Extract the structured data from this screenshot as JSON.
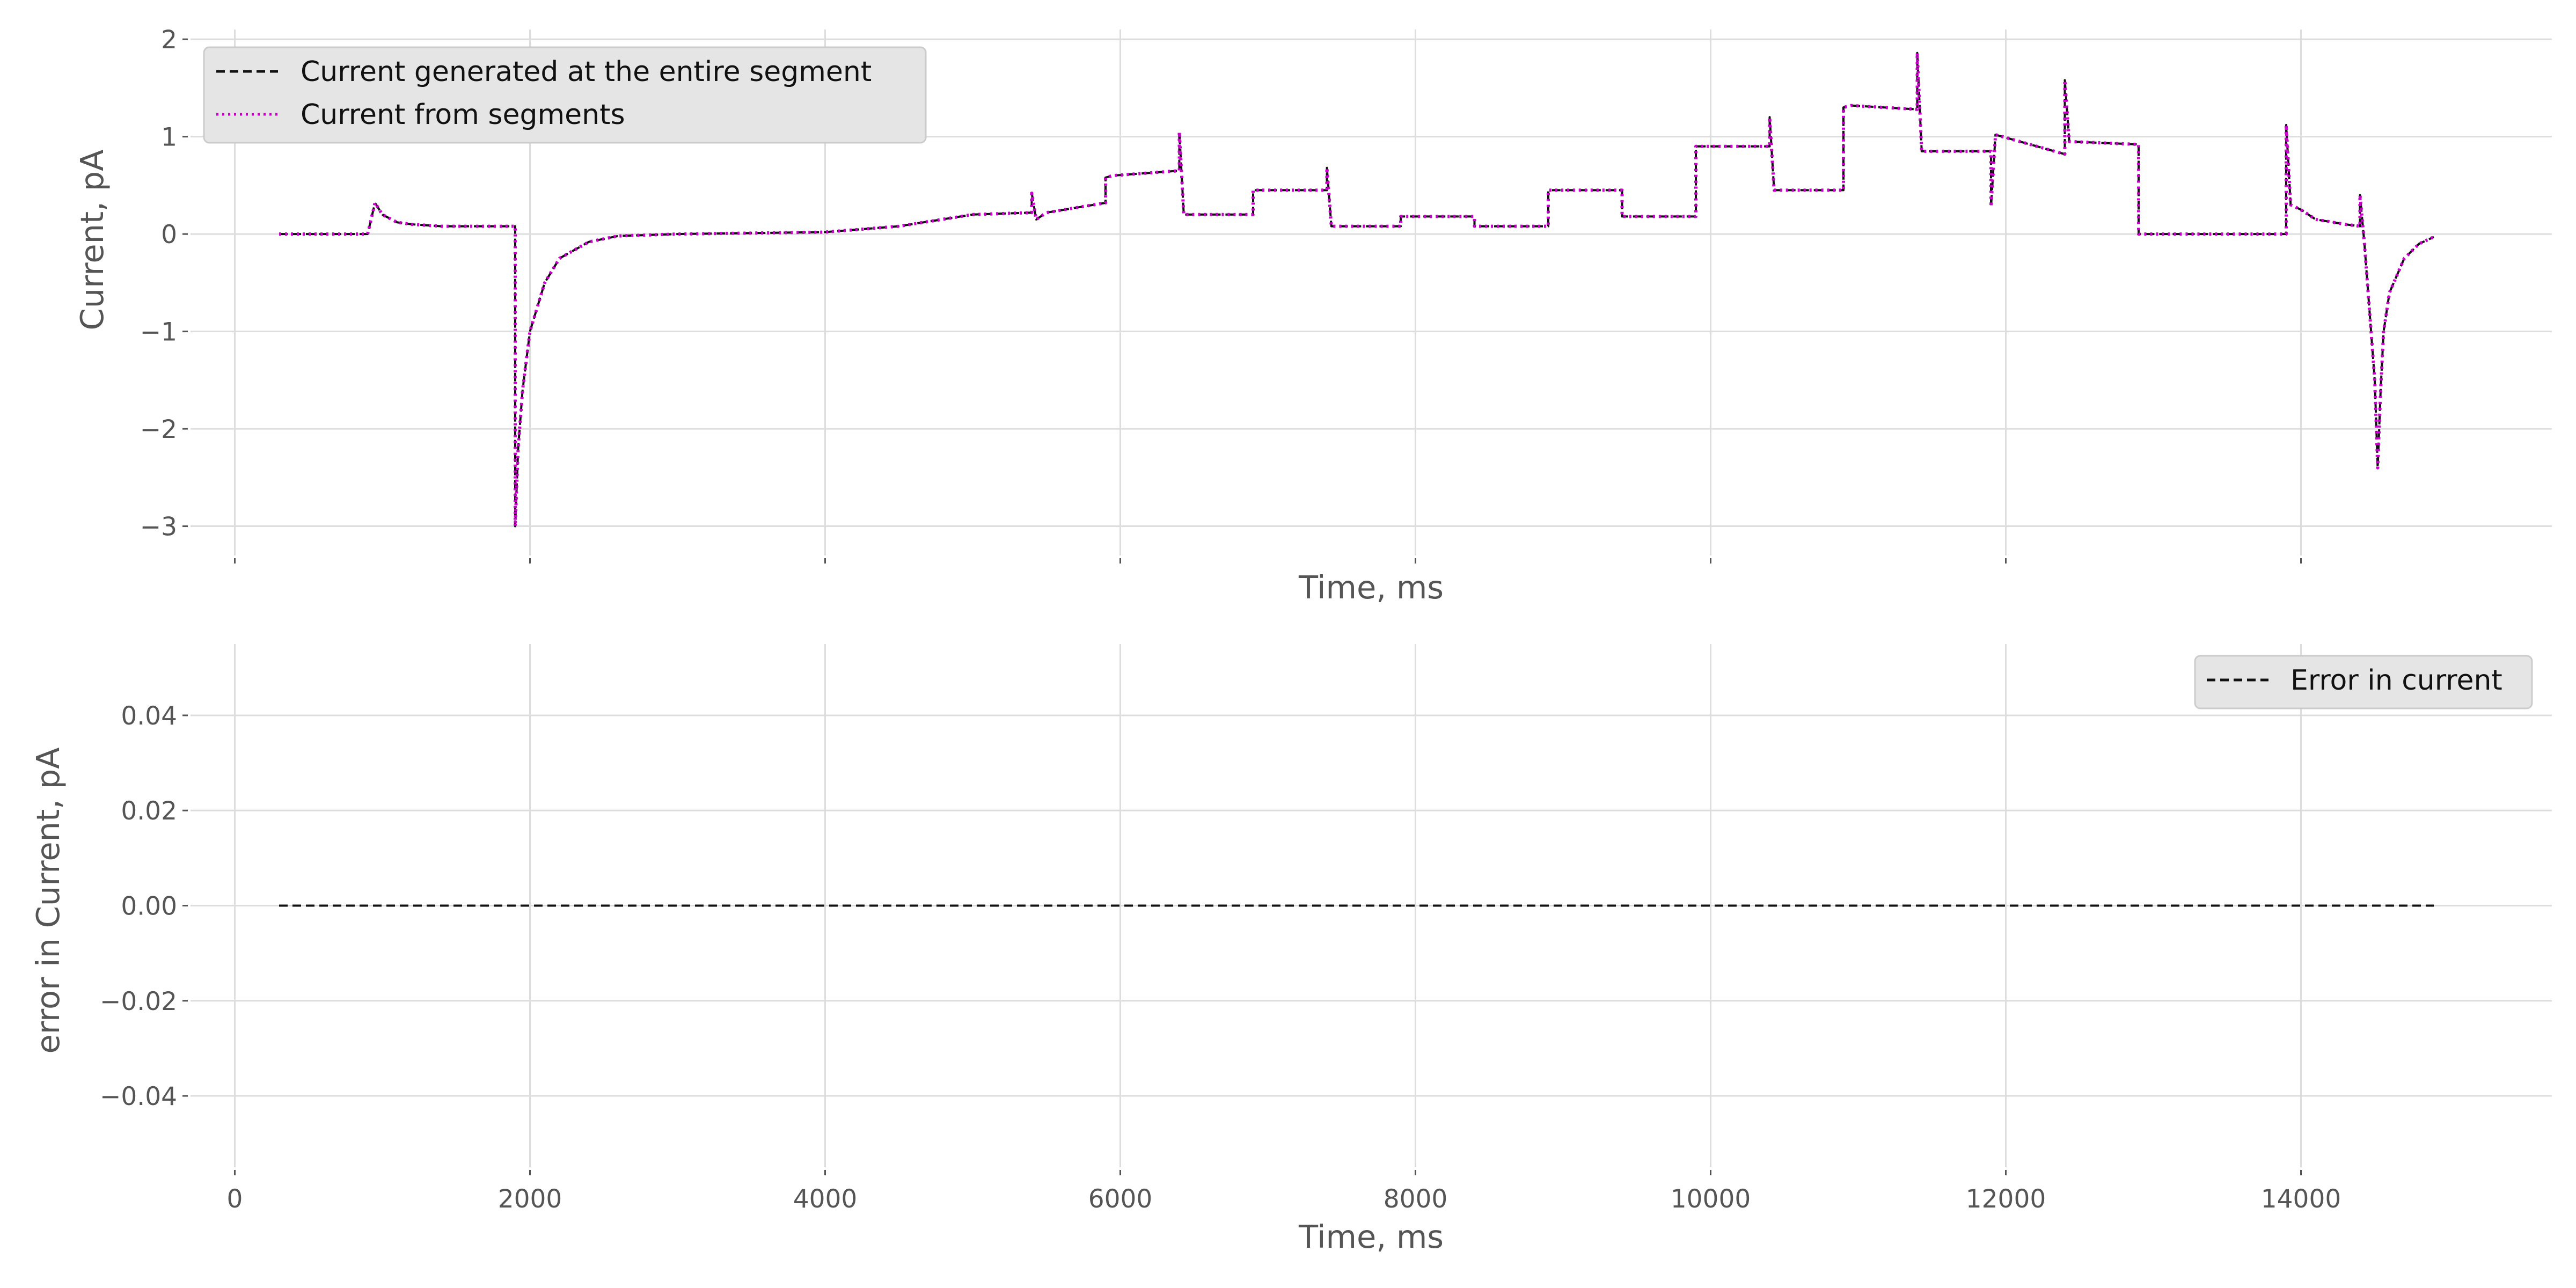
{
  "colors": {
    "plot_background": "#ffffff",
    "grid": "#dddddd",
    "tick_text": "#555555",
    "legend_background": "#e5e5e5",
    "legend_border": "#cccccc",
    "entire_segment_line": "#111111",
    "segments_line": "#cc00cc",
    "error_line": "#111111"
  },
  "chart_data": [
    {
      "type": "line",
      "xlabel": "Time, ms",
      "ylabel": "Current, pA",
      "xlim": [
        -300,
        15700
      ],
      "ylim": [
        -3.3,
        2.1
      ],
      "x_ticks": [
        0,
        2000,
        4000,
        6000,
        8000,
        10000,
        12000,
        14000
      ],
      "show_x_tick_labels": false,
      "y_ticks": [
        -3,
        -2,
        -1,
        0,
        1,
        2
      ],
      "y_tick_labels": [
        "−3",
        "−2",
        "−1",
        "0",
        "1",
        "2"
      ],
      "grid": true,
      "legend_position": "top-left",
      "series": [
        {
          "name": "Current generated at the entire segment",
          "style": "dashed",
          "color": "#111111",
          "x": [
            300,
            900,
            950,
            1000,
            1100,
            1200,
            1400,
            1900,
            1900,
            1920,
            1950,
            2000,
            2100,
            2200,
            2400,
            2600,
            3000,
            4000,
            4500,
            5000,
            5400,
            5400,
            5430,
            5500,
            5900,
            5900,
            5950,
            6400,
            6400,
            6430,
            6900,
            6900,
            6950,
            7400,
            7400,
            7430,
            7900,
            7900,
            8400,
            8400,
            8900,
            8900,
            9400,
            9400,
            9900,
            9900,
            9950,
            10400,
            10400,
            10430,
            10900,
            10900,
            10950,
            11400,
            11400,
            11430,
            11900,
            11900,
            11930,
            12400,
            12400,
            12430,
            12900,
            12900,
            13900,
            13900,
            13930,
            14000,
            14100,
            14300,
            14400,
            14400,
            14430,
            14500,
            14520,
            14540,
            14560,
            14600,
            14700,
            14800,
            14900
          ],
          "values": [
            0.0,
            0.0,
            0.32,
            0.2,
            0.12,
            0.1,
            0.08,
            0.08,
            -3.0,
            -2.2,
            -1.6,
            -1.0,
            -0.5,
            -0.25,
            -0.08,
            -0.02,
            0.0,
            0.02,
            0.08,
            0.2,
            0.22,
            0.42,
            0.15,
            0.22,
            0.32,
            0.58,
            0.6,
            0.65,
            1.05,
            0.2,
            0.2,
            0.45,
            0.45,
            0.45,
            0.68,
            0.08,
            0.08,
            0.18,
            0.18,
            0.08,
            0.08,
            0.45,
            0.45,
            0.18,
            0.18,
            0.9,
            0.9,
            0.9,
            1.2,
            0.45,
            0.45,
            1.3,
            1.32,
            1.28,
            1.86,
            0.85,
            0.85,
            0.28,
            1.02,
            0.82,
            1.58,
            0.95,
            0.92,
            0.0,
            0.0,
            1.12,
            0.3,
            0.25,
            0.15,
            0.1,
            0.08,
            0.4,
            -0.1,
            -1.5,
            -2.4,
            -1.6,
            -1.0,
            -0.6,
            -0.25,
            -0.1,
            -0.03
          ]
        },
        {
          "name": "Current from segments",
          "style": "dotted",
          "color": "#cc00cc",
          "x": [
            300,
            900,
            950,
            1000,
            1100,
            1200,
            1400,
            1900,
            1900,
            1920,
            1950,
            2000,
            2100,
            2200,
            2400,
            2600,
            3000,
            4000,
            4500,
            5000,
            5400,
            5400,
            5430,
            5500,
            5900,
            5900,
            5950,
            6400,
            6400,
            6430,
            6900,
            6900,
            6950,
            7400,
            7400,
            7430,
            7900,
            7900,
            8400,
            8400,
            8900,
            8900,
            9400,
            9400,
            9900,
            9900,
            9950,
            10400,
            10400,
            10430,
            10900,
            10900,
            10950,
            11400,
            11400,
            11430,
            11900,
            11900,
            11930,
            12400,
            12400,
            12430,
            12900,
            12900,
            13900,
            13900,
            13930,
            14000,
            14100,
            14300,
            14400,
            14400,
            14430,
            14500,
            14520,
            14540,
            14560,
            14600,
            14700,
            14800,
            14900
          ],
          "values": [
            0.0,
            0.0,
            0.32,
            0.2,
            0.12,
            0.1,
            0.08,
            0.08,
            -3.0,
            -2.2,
            -1.6,
            -1.0,
            -0.5,
            -0.25,
            -0.08,
            -0.02,
            0.0,
            0.02,
            0.08,
            0.2,
            0.22,
            0.42,
            0.15,
            0.22,
            0.32,
            0.58,
            0.6,
            0.65,
            1.05,
            0.2,
            0.2,
            0.45,
            0.45,
            0.45,
            0.68,
            0.08,
            0.08,
            0.18,
            0.18,
            0.08,
            0.08,
            0.45,
            0.45,
            0.18,
            0.18,
            0.9,
            0.9,
            0.9,
            1.2,
            0.45,
            0.45,
            1.3,
            1.32,
            1.28,
            1.86,
            0.85,
            0.85,
            0.28,
            1.02,
            0.82,
            1.58,
            0.95,
            0.92,
            0.0,
            0.0,
            1.12,
            0.3,
            0.25,
            0.15,
            0.1,
            0.08,
            0.4,
            -0.1,
            -1.5,
            -2.4,
            -1.6,
            -1.0,
            -0.6,
            -0.25,
            -0.1,
            -0.03
          ]
        }
      ]
    },
    {
      "type": "line",
      "xlabel": "Time, ms",
      "ylabel": "error in Current, pA",
      "xlim": [
        -300,
        15700
      ],
      "ylim": [
        -0.055,
        0.055
      ],
      "x_ticks": [
        0,
        2000,
        4000,
        6000,
        8000,
        10000,
        12000,
        14000
      ],
      "x_tick_labels": [
        "0",
        "2000",
        "4000",
        "6000",
        "8000",
        "10000",
        "12000",
        "14000"
      ],
      "y_ticks": [
        -0.04,
        -0.02,
        0.0,
        0.02,
        0.04
      ],
      "y_tick_labels": [
        "−0.04",
        "−0.02",
        "0.00",
        "0.02",
        "0.04"
      ],
      "grid": true,
      "legend_position": "top-right",
      "series": [
        {
          "name": "Error in current",
          "style": "dashed",
          "color": "#111111",
          "x": [
            300,
            14900
          ],
          "values": [
            0.0,
            0.0
          ]
        }
      ]
    }
  ]
}
